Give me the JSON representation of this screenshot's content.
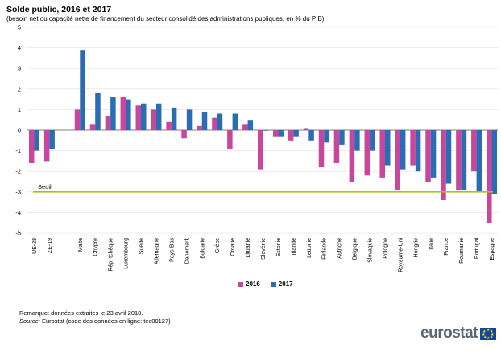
{
  "title": "Solde public, 2016 et 2017",
  "subtitle": "(besoin net ou capacité nette de financement du secteur consolidé des administrations publiques, en % du PIB)",
  "notes": {
    "line1": "Remarque: données extraites le 23 avril 2018.",
    "source_label": "Source:",
    "source_text": " Eurostat (code des données en ligne: tec00127)"
  },
  "logo": {
    "text": "eurostat",
    "icon": "eu-flag-icon"
  },
  "colors": {
    "s2016": "#c8469c",
    "s2017": "#2a6db5",
    "threshold": "#a8c023",
    "grid": "#e0e0e0"
  },
  "chart_data": {
    "type": "bar",
    "ylim": [
      -5,
      5
    ],
    "yticks": [
      5,
      4,
      3,
      2,
      1,
      0,
      -1,
      -2,
      -3,
      -4,
      -5
    ],
    "categories": [
      "UE-28",
      "ZE-19",
      "",
      "Malte",
      "Chypre",
      "Rép. tchèque",
      "Luxembourg",
      "Suède",
      "Allemagne",
      "Pays-Bas",
      "Danemark",
      "Bulgarie",
      "Grèce",
      "Croatie",
      "Lituanie",
      "Slovénie",
      "Estonie",
      "Irlande",
      "Lettonie",
      "Finlande",
      "Autriche",
      "Belgique",
      "Slovaquie",
      "Pologne",
      "Royaume-Uni",
      "Hongrie",
      "Italie",
      "France",
      "Roumanie",
      "Portugal",
      "Espagne"
    ],
    "series": [
      {
        "name": "2016",
        "values": [
          -1.6,
          -1.5,
          null,
          1.0,
          0.3,
          0.7,
          1.6,
          1.2,
          1.0,
          0.4,
          -0.4,
          0.2,
          0.6,
          -0.9,
          0.3,
          -1.9,
          -0.3,
          -0.5,
          0.1,
          -1.8,
          -1.6,
          -2.5,
          -2.2,
          -2.3,
          -2.9,
          -1.7,
          -2.5,
          -3.4,
          -2.9,
          -2.0,
          -4.5
        ]
      },
      {
        "name": "2017",
        "values": [
          -1.0,
          -0.9,
          null,
          3.9,
          1.8,
          1.6,
          1.5,
          1.3,
          1.3,
          1.1,
          1.0,
          0.9,
          0.8,
          0.8,
          0.5,
          0.0,
          -0.3,
          -0.3,
          -0.5,
          -0.6,
          -0.7,
          -1.0,
          -1.0,
          -1.7,
          -1.9,
          -2.0,
          -2.3,
          -2.6,
          -2.9,
          -3.0,
          -3.1
        ]
      }
    ],
    "threshold": {
      "label": "Seuil",
      "value": -3
    },
    "legend_position": "bottom-center",
    "grid": "horizontal"
  }
}
